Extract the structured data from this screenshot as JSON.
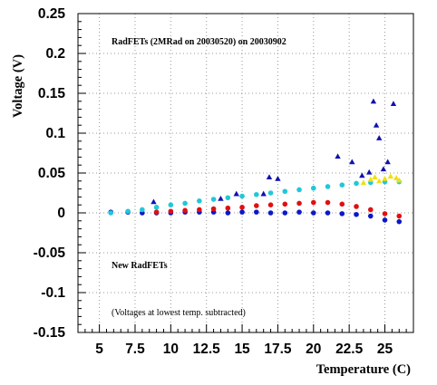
{
  "chart_data": {
    "type": "scatter",
    "xlabel": "Temperature (C)",
    "ylabel": "Voltage (V)",
    "xlim": [
      3.5,
      27
    ],
    "ylim": [
      -0.15,
      0.25
    ],
    "xticks": [
      "5",
      "7.5",
      "10",
      "12.5",
      "15",
      "17.5",
      "20",
      "22.5",
      "25"
    ],
    "xtick_values": [
      5,
      7.5,
      10,
      12.5,
      15,
      17.5,
      20,
      22.5,
      25
    ],
    "yticks": [
      "0.25",
      "0.2",
      "0.15",
      "0.1",
      "0.05",
      "0",
      "-0.05",
      "-0.1",
      "-0.15"
    ],
    "ytick_values": [
      0.25,
      0.2,
      0.15,
      0.1,
      0.05,
      0,
      -0.05,
      -0.1,
      -0.15
    ],
    "grid": true,
    "annotations": [
      {
        "id": "title",
        "text": "RadFETs (2MRad on 20030520) on 20030902"
      },
      {
        "id": "new",
        "text": "New RadFETs"
      },
      {
        "id": "note",
        "text": "(Voltages at lowest temp. subtracted)"
      }
    ],
    "series": [
      {
        "color": "#0a18c8",
        "marker": "circle",
        "points": [
          [
            5.8,
            0.001
          ],
          [
            7,
            0.001
          ],
          [
            8,
            0.0
          ],
          [
            9,
            0.0
          ],
          [
            10,
            0.0
          ],
          [
            11,
            0.001
          ],
          [
            12,
            0.001
          ],
          [
            13,
            0.001
          ],
          [
            14,
            0.0
          ],
          [
            15,
            0.001
          ],
          [
            16,
            0.001
          ],
          [
            17,
            0.0
          ],
          [
            18,
            0.0
          ],
          [
            19,
            0.001
          ],
          [
            20,
            0.0
          ],
          [
            21,
            0.0
          ],
          [
            22,
            -0.001
          ],
          [
            23,
            -0.002
          ],
          [
            24,
            -0.004
          ],
          [
            25,
            -0.009
          ],
          [
            26,
            -0.011
          ]
        ]
      },
      {
        "color": "#e01010",
        "marker": "circle",
        "points": [
          [
            9,
            0.001
          ],
          [
            10,
            0.002
          ],
          [
            11,
            0.003
          ],
          [
            12,
            0.004
          ],
          [
            13,
            0.005
          ],
          [
            14,
            0.006
          ],
          [
            15,
            0.007
          ],
          [
            16,
            0.009
          ],
          [
            17,
            0.01
          ],
          [
            18,
            0.011
          ],
          [
            19,
            0.012
          ],
          [
            20,
            0.013
          ],
          [
            21,
            0.013
          ],
          [
            22,
            0.011
          ],
          [
            23,
            0.008
          ],
          [
            24,
            0.004
          ],
          [
            25,
            -0.001
          ],
          [
            26,
            -0.004
          ]
        ]
      },
      {
        "color": "#20c8d8",
        "marker": "circle",
        "points": [
          [
            5.8,
            0.0
          ],
          [
            7,
            0.002
          ],
          [
            8,
            0.004
          ],
          [
            9,
            0.007
          ],
          [
            10,
            0.01
          ],
          [
            11,
            0.012
          ],
          [
            12,
            0.015
          ],
          [
            13,
            0.017
          ],
          [
            14,
            0.019
          ],
          [
            15,
            0.021
          ],
          [
            16,
            0.023
          ],
          [
            17,
            0.025
          ],
          [
            18,
            0.027
          ],
          [
            19,
            0.029
          ],
          [
            20,
            0.031
          ],
          [
            21,
            0.033
          ],
          [
            22,
            0.035
          ],
          [
            23,
            0.037
          ],
          [
            24,
            0.038
          ],
          [
            25,
            0.039
          ],
          [
            26,
            0.039
          ]
        ]
      },
      {
        "color": "#f0e010",
        "marker": "triangle",
        "points": [
          [
            23.5,
            0.038
          ],
          [
            24,
            0.042
          ],
          [
            24.3,
            0.045
          ],
          [
            24.6,
            0.04
          ],
          [
            25,
            0.043
          ],
          [
            25.4,
            0.046
          ],
          [
            25.8,
            0.044
          ],
          [
            26,
            0.041
          ]
        ]
      },
      {
        "color": "#1010b0",
        "marker": "triangle",
        "points": [
          [
            8.8,
            0.014
          ],
          [
            13.5,
            0.018
          ],
          [
            14.6,
            0.024
          ],
          [
            16.5,
            0.024
          ],
          [
            16.9,
            0.045
          ],
          [
            17.5,
            0.043
          ],
          [
            21.7,
            0.071
          ],
          [
            22.7,
            0.064
          ],
          [
            23.4,
            0.047
          ],
          [
            23.9,
            0.051
          ],
          [
            24.2,
            0.14
          ],
          [
            24.4,
            0.11
          ],
          [
            24.6,
            0.094
          ],
          [
            24.9,
            0.055
          ],
          [
            25.2,
            0.064
          ],
          [
            25.6,
            0.137
          ]
        ]
      }
    ]
  }
}
